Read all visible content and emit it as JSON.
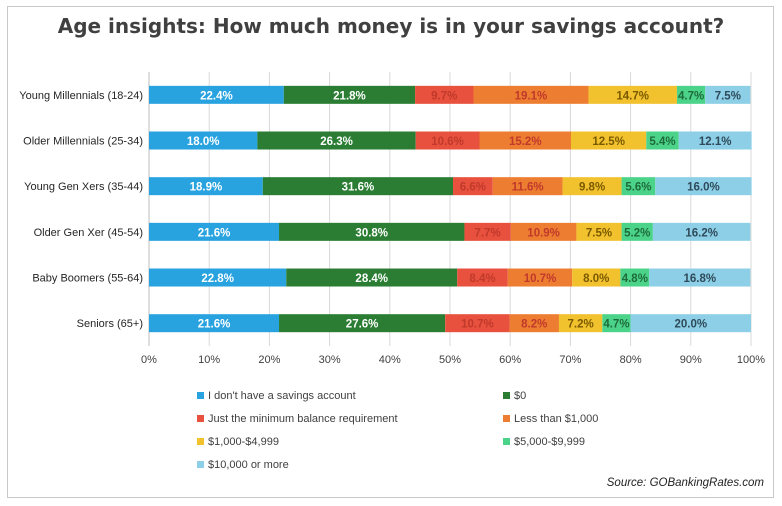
{
  "chart_data": {
    "type": "bar",
    "orientation": "horizontal",
    "stacked": "percent",
    "title": "Age insights: How much money is in your savings account?",
    "categories": [
      "Young Millennials (18-24)",
      "Older Millennials (25-34)",
      "Young Gen Xers (35-44)",
      "Older Gen Xer (45-54)",
      "Baby Boomers (55-64)",
      "Seniors (65+)"
    ],
    "series": [
      {
        "name": "I don't have a savings account",
        "color": "#29a3e0",
        "values": [
          22.4,
          18.0,
          18.9,
          21.6,
          22.8,
          21.6
        ]
      },
      {
        "name": "$0",
        "color": "#2a7d32",
        "values": [
          21.8,
          26.3,
          31.6,
          30.8,
          28.4,
          27.6
        ]
      },
      {
        "name": "Just the minimum balance requirement",
        "color": "#e8513d",
        "values": [
          9.7,
          10.6,
          6.6,
          7.7,
          8.4,
          10.7
        ]
      },
      {
        "name": "Less than $1,000",
        "color": "#ed7d31",
        "values": [
          19.1,
          15.2,
          11.6,
          10.9,
          10.7,
          8.2
        ]
      },
      {
        "name": "$1,000-$4,999",
        "color": "#f2c12e",
        "values": [
          14.7,
          12.5,
          9.8,
          7.5,
          8.0,
          7.2
        ]
      },
      {
        "name": "$5,000-$9,999",
        "color": "#4cd38a",
        "values": [
          4.7,
          5.4,
          5.6,
          5.2,
          4.8,
          4.7
        ]
      },
      {
        "name": "$10,000 or more",
        "color": "#8ccfe6",
        "values": [
          7.5,
          12.1,
          16.0,
          16.2,
          16.8,
          20.0
        ]
      }
    ],
    "data_labels": [
      [
        "22.4%",
        "21.8%",
        "9.7%",
        "19.1%",
        "14.7%",
        "4.7%",
        "7.5%"
      ],
      [
        "18.0%",
        "26.3%",
        "10.6%",
        "15.2%",
        "12.5%",
        "5.4%",
        "12.1%"
      ],
      [
        "18.9%",
        "31.6%",
        "6.6%",
        "11.6%",
        "9.8%",
        "5.6%",
        "16.0%"
      ],
      [
        "21.6%",
        "30.8%",
        "7.7%",
        "10.9%",
        "7.5%",
        "5.2%",
        "16.2%"
      ],
      [
        "22.8%",
        "28.4%",
        "8.4%",
        "10.7%",
        "8.0%",
        "4.8%",
        "16.8%"
      ],
      [
        "21.6%",
        "27.6%",
        "10.7%",
        "8.2%",
        "7.2%",
        "4.7%",
        "20.0%"
      ]
    ],
    "label_colors": [
      "#ffffff",
      "#ffffff",
      "#c0392b",
      "#c0392b",
      "#7a5a00",
      "#1e6b3a",
      "#2f4a5a"
    ],
    "xlim": [
      0,
      100
    ],
    "xticks": [
      "0%",
      "10%",
      "20%",
      "30%",
      "40%",
      "50%",
      "60%",
      "70%",
      "80%",
      "90%",
      "100%"
    ],
    "grid": true,
    "legend_position": "bottom",
    "source": "Source: GOBankingRates.com"
  }
}
